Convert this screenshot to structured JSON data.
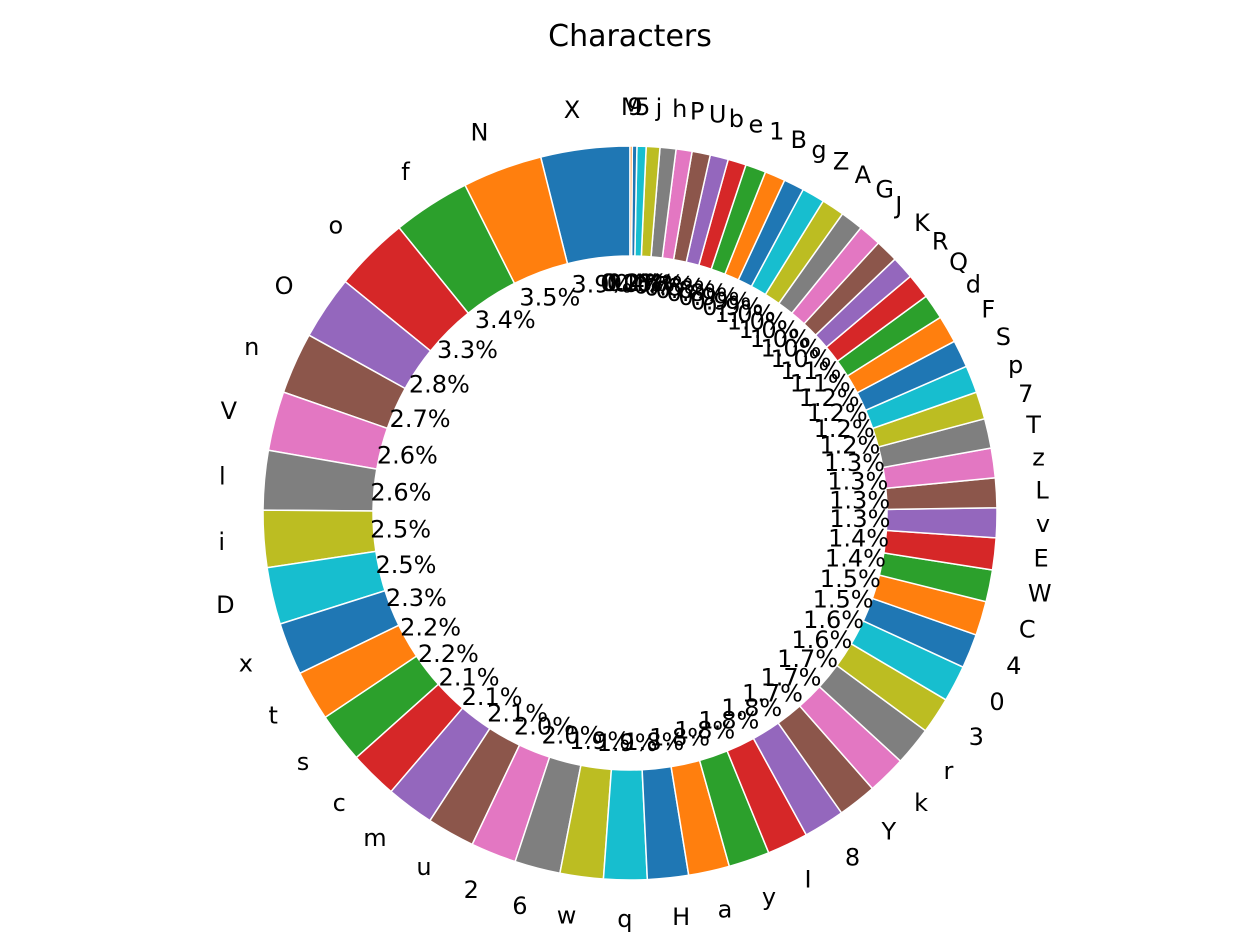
{
  "chart_data": {
    "type": "pie",
    "variant": "donut",
    "title": "Characters",
    "value_format": "percent_1dp",
    "start": "top, counterclockwise",
    "legend": "none",
    "palette": [
      "#1f77b4",
      "#ff7f0e",
      "#2ca02c",
      "#d62728",
      "#9467bd",
      "#8c564b",
      "#e377c2",
      "#7f7f7f",
      "#bcbd22",
      "#17becf"
    ],
    "categories": [
      "X",
      "N",
      "f",
      "o",
      "O",
      "n",
      "V",
      "l",
      "i",
      "D",
      "x",
      "t",
      "s",
      "c",
      "m",
      "u",
      "2",
      "6",
      "w",
      "q",
      "H",
      "a",
      "y",
      "I",
      "8",
      "Y",
      "k",
      "r",
      "3",
      "0",
      "4",
      "C",
      "W",
      "E",
      "v",
      "L",
      "z",
      "T",
      "7",
      "p",
      "S",
      "F",
      "d",
      "Q",
      "R",
      "K",
      "J",
      "G",
      "A",
      "Z",
      "g",
      "B",
      "1",
      "e",
      "b",
      "U",
      "P",
      "h",
      "j",
      "5",
      "9",
      "M"
    ],
    "values": [
      3.9,
      3.5,
      3.4,
      3.3,
      2.8,
      2.7,
      2.6,
      2.6,
      2.5,
      2.5,
      2.3,
      2.2,
      2.2,
      2.1,
      2.1,
      2.1,
      2.0,
      2.0,
      1.9,
      1.9,
      1.8,
      1.8,
      1.8,
      1.8,
      1.8,
      1.7,
      1.7,
      1.7,
      1.6,
      1.6,
      1.5,
      1.5,
      1.4,
      1.4,
      1.3,
      1.3,
      1.3,
      1.3,
      1.2,
      1.2,
      1.2,
      1.2,
      1.1,
      1.1,
      1.0,
      1.0,
      1.0,
      1.0,
      1.0,
      1.0,
      0.9,
      0.9,
      0.9,
      0.8,
      0.8,
      0.8,
      0.7,
      0.7,
      0.6,
      0.4,
      0.2,
      0.1
    ]
  }
}
